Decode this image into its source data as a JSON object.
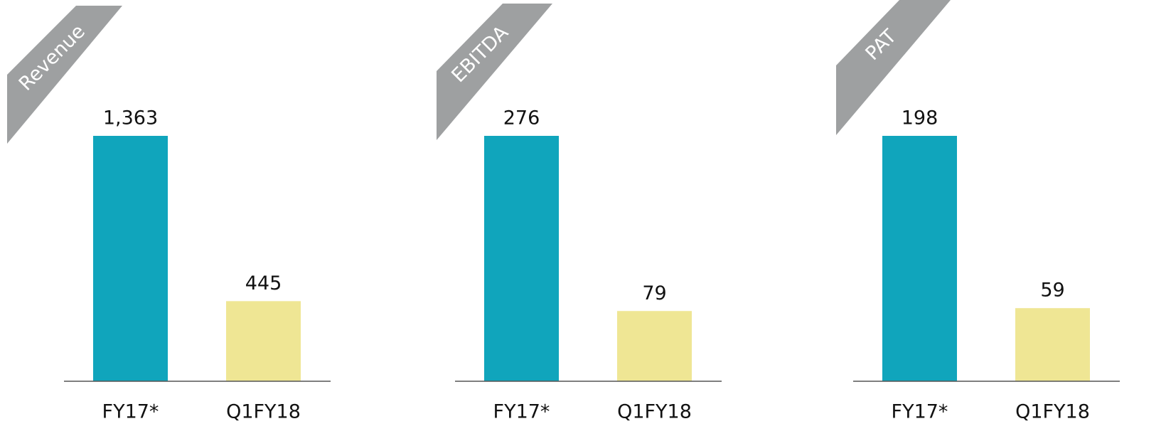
{
  "chart_data": [
    {
      "type": "bar",
      "title": "Revenue",
      "categories": [
        "FY17*",
        "Q1FY18"
      ],
      "values": [
        1363,
        445
      ],
      "value_labels": [
        "1,363",
        "445"
      ],
      "colors": [
        "#10a5bc",
        "#efe694"
      ]
    },
    {
      "type": "bar",
      "title": "EBITDA",
      "categories": [
        "FY17*",
        "Q1FY18"
      ],
      "values": [
        276,
        79
      ],
      "colors": [
        "#10a5bc",
        "#efe694"
      ]
    },
    {
      "type": "bar",
      "title": "PAT",
      "categories": [
        "FY17*",
        "Q1FY18"
      ],
      "values": [
        198,
        59
      ],
      "colors": [
        "#10a5bc",
        "#efe694"
      ]
    }
  ]
}
